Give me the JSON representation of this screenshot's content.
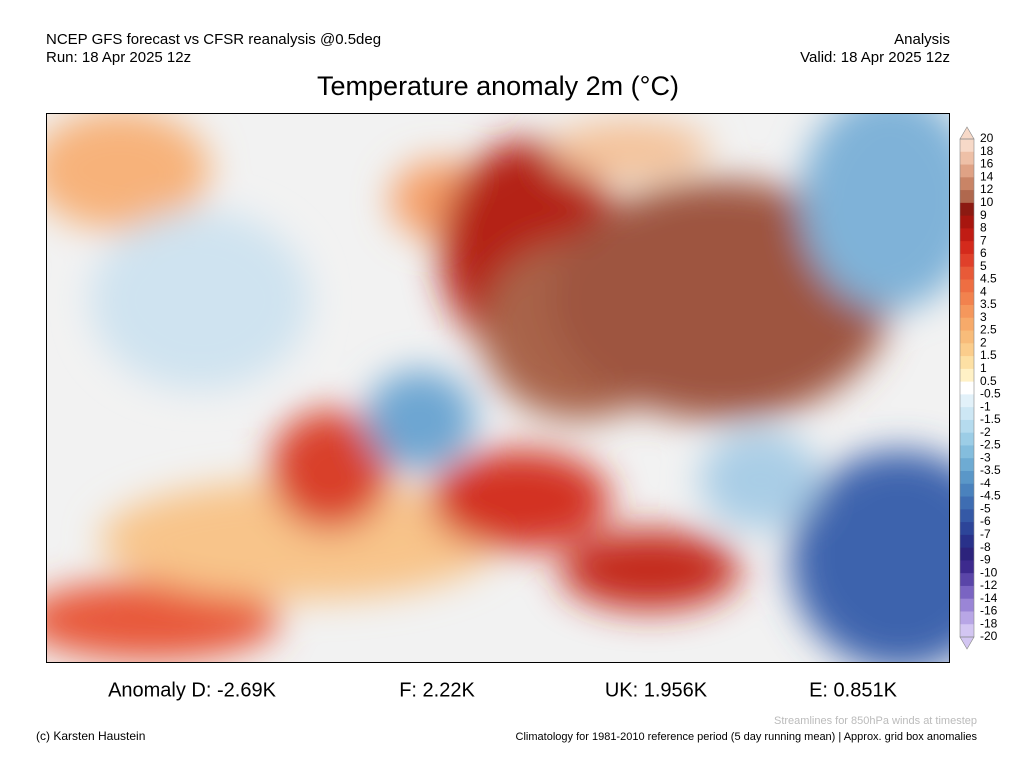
{
  "header": {
    "model": "NCEP GFS forecast vs CFSR reanalysis @0.5deg",
    "run": "Run: 18 Apr 2025 12z",
    "analysis": "Analysis",
    "valid": "Valid: 18 Apr 2025 12z"
  },
  "title": "Temperature anomaly 2m (°C)",
  "colorbar": {
    "levels": [
      "20",
      "18",
      "16",
      "14",
      "12",
      "10",
      "9",
      "8",
      "7",
      "6",
      "5",
      "4.5",
      "4",
      "3.5",
      "3",
      "2.5",
      "2",
      "1.5",
      "1",
      "0.5",
      "-0.5",
      "-1",
      "-1.5",
      "-2",
      "-2.5",
      "-3",
      "-3.5",
      "-4",
      "-4.5",
      "-5",
      "-6",
      "-7",
      "-8",
      "-9",
      "-10",
      "-12",
      "-14",
      "-16",
      "-18",
      "-20"
    ],
    "colors": [
      "#f7d9c8",
      "#eec0a7",
      "#dfa285",
      "#c98466",
      "#b0684e",
      "#8c1a12",
      "#a8160f",
      "#c01c14",
      "#d42a1c",
      "#e0402a",
      "#e85a38",
      "#ee6e42",
      "#f2824e",
      "#f5975c",
      "#f7aa6a",
      "#f8bc7a",
      "#fbcd8c",
      "#fde0a4",
      "#fff1c6",
      "#ffffff",
      "#e2f1f9",
      "#cde7f4",
      "#b5dbee",
      "#9ccde6",
      "#84bddd",
      "#6eabd3",
      "#5a97c8",
      "#4a82bd",
      "#3e6db2",
      "#3559a6",
      "#2d4599",
      "#29318a",
      "#2c237c",
      "#3d2a8e",
      "#5a45a8",
      "#7a64c2",
      "#9a85d6",
      "#b8a6e6",
      "#d3c6f2"
    ]
  },
  "anomalies": [
    "Anomaly D: -2.69K",
    "F: 2.22K",
    "UK: 1.956K",
    "E: 0.851K"
  ],
  "footer": {
    "credit": "(c) Karsten Haustein",
    "streamlines": "Streamlines for 850hPa winds at timestep",
    "climatology": "Climatology for 1981-2010 reference period (5 day running mean) | Approx. grid box anomalies"
  }
}
